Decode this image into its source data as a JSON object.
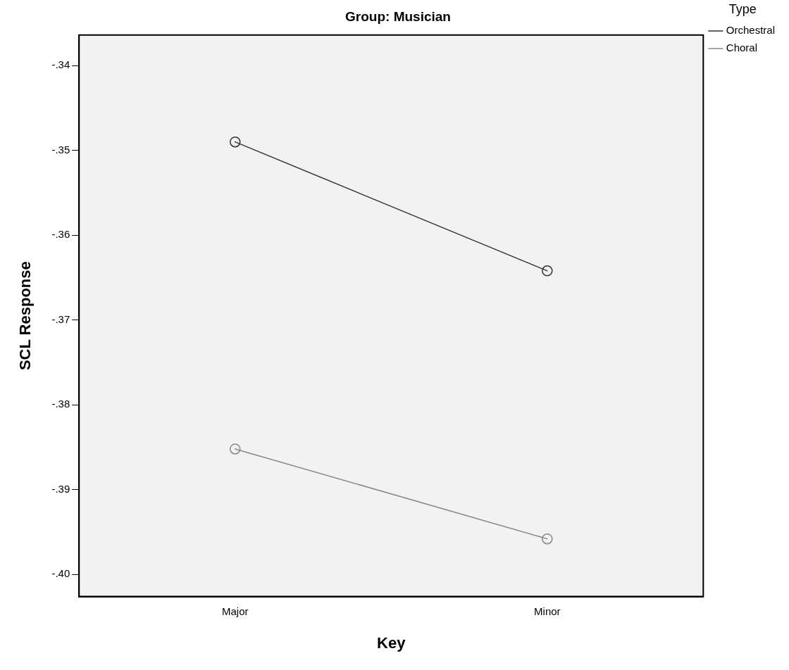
{
  "chart_data": {
    "type": "line",
    "title": "Group: Musician",
    "xlabel": "Key",
    "ylabel": "SCL Response",
    "legend_title": "Type",
    "categories": [
      "Major",
      "Minor"
    ],
    "series": [
      {
        "name": "Orchestral",
        "color": "#333333",
        "values": [
          -0.349,
          -0.3642
        ]
      },
      {
        "name": "Choral",
        "color": "#888888",
        "values": [
          -0.3852,
          -0.3958
        ]
      }
    ],
    "ylim": [
      -0.4026,
      -0.3364
    ],
    "yticks": [
      {
        "value": -0.34,
        "label": "-.34"
      },
      {
        "value": -0.35,
        "label": "-.35"
      },
      {
        "value": -0.36,
        "label": "-.36"
      },
      {
        "value": -0.37,
        "label": "-.37"
      },
      {
        "value": -0.38,
        "label": "-.38"
      },
      {
        "value": -0.39,
        "label": "-.39"
      },
      {
        "value": -0.4,
        "label": "-.40"
      }
    ],
    "legend": "top right",
    "marker": "circle",
    "line_style": "solid",
    "grid": false
  }
}
